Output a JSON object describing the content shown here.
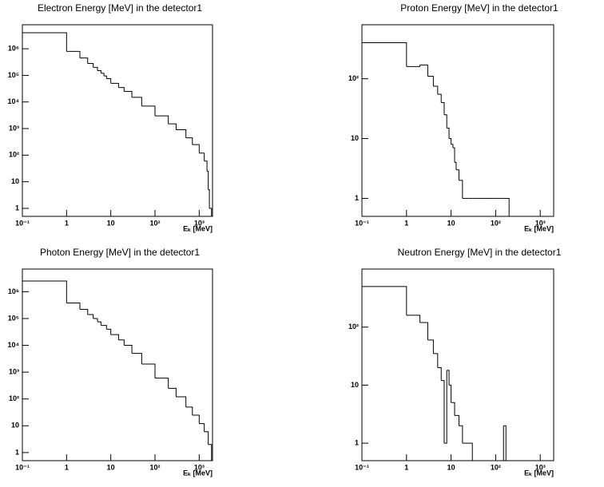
{
  "chart_data": [
    {
      "type": "histogram",
      "title": "Electron Energy [MeV] in the detector1",
      "x_label": "Eₖ [MeV]",
      "log_x": true,
      "log_y": true,
      "color": "#000000",
      "bins": [
        0.1,
        1,
        2,
        3,
        4,
        5,
        6,
        7,
        8,
        10,
        15,
        20,
        30,
        50,
        100,
        200,
        300,
        500,
        700,
        1000,
        1300,
        1500,
        1600,
        1700,
        1900
      ],
      "values": [
        4000000,
        800000,
        450000,
        280000,
        200000,
        150000,
        120000,
        95000,
        75000,
        50000,
        35000,
        25000,
        15000,
        7000,
        3000,
        1500,
        900,
        450,
        250,
        120,
        60,
        25,
        5,
        1
      ],
      "xlim": [
        0.1,
        2000
      ],
      "xticks": [
        {
          "value": 0.1,
          "label": "10⁻¹"
        },
        1,
        10,
        {
          "value": 100,
          "label": "10²"
        },
        {
          "value": 1000,
          "label": "10³"
        }
      ],
      "ylim": [
        0.5,
        8000000
      ],
      "yticks": [
        1,
        10,
        {
          "value": 100,
          "label": "10²"
        },
        {
          "value": 1000,
          "label": "10³"
        },
        {
          "value": 10000,
          "label": "10⁴"
        },
        {
          "value": 100000,
          "label": "10⁵"
        },
        {
          "value": 1000000,
          "label": "10⁶"
        }
      ]
    },
    {
      "type": "histogram",
      "title": "Proton Energy [MeV] in the detector1",
      "x_label": "Eₖ [MeV]",
      "log_x": true,
      "log_y": true,
      "color": "#000000",
      "bins": [
        0.1,
        1,
        2,
        3,
        4,
        5,
        6,
        7,
        8,
        9,
        10,
        11,
        12,
        13,
        15,
        18,
        20,
        25,
        30,
        40,
        60,
        80,
        100,
        150,
        200,
        2000
      ],
      "values": [
        400,
        160,
        170,
        110,
        75,
        55,
        40,
        25,
        15,
        10,
        8,
        7,
        4,
        3,
        2,
        1,
        1,
        1,
        1,
        1,
        1,
        1,
        1,
        1,
        0
      ],
      "xlim": [
        0.1,
        2000
      ],
      "xticks": [
        {
          "value": 0.1,
          "label": "10⁻¹"
        },
        1,
        10,
        {
          "value": 100,
          "label": "10²"
        },
        {
          "value": 1000,
          "label": "10³"
        }
      ],
      "ylim": [
        0.5,
        800
      ],
      "yticks": [
        1,
        10,
        {
          "value": 100,
          "label": "10²"
        }
      ]
    },
    {
      "type": "histogram",
      "title": "Photon Energy [MeV] in the detector1",
      "x_label": "Eₖ [MeV]",
      "log_x": true,
      "log_y": true,
      "color": "#000000",
      "bins": [
        0.1,
        1,
        2,
        3,
        4,
        5,
        6,
        8,
        10,
        15,
        20,
        30,
        50,
        100,
        200,
        300,
        500,
        700,
        1000,
        1300,
        1600,
        1900
      ],
      "values": [
        2500000,
        380000,
        220000,
        140000,
        100000,
        75000,
        55000,
        40000,
        25000,
        16000,
        10000,
        5000,
        2000,
        600,
        250,
        120,
        50,
        25,
        12,
        6,
        2
      ],
      "xlim": [
        0.1,
        2000
      ],
      "xticks": [
        {
          "value": 0.1,
          "label": "10⁻¹"
        },
        1,
        10,
        {
          "value": 100,
          "label": "10²"
        },
        {
          "value": 1000,
          "label": "10³"
        }
      ],
      "ylim": [
        0.5,
        7000000
      ],
      "yticks": [
        1,
        10,
        {
          "value": 100,
          "label": "10²"
        },
        {
          "value": 1000,
          "label": "10³"
        },
        {
          "value": 10000,
          "label": "10⁴"
        },
        {
          "value": 100000,
          "label": "10⁵"
        },
        {
          "value": 1000000,
          "label": "10⁶"
        }
      ]
    },
    {
      "type": "histogram",
      "title": "Neutron Energy [MeV] in the detector1",
      "x_label": "Eₖ [MeV]",
      "log_x": true,
      "log_y": true,
      "color": "#000000",
      "bins": [
        0.1,
        1,
        2,
        3,
        4,
        5,
        6,
        7,
        8,
        9,
        10,
        12,
        15,
        18,
        20,
        30,
        150,
        170,
        2000
      ],
      "values": [
        500,
        160,
        120,
        60,
        35,
        20,
        12,
        1,
        18,
        10,
        5,
        3,
        2,
        1,
        1,
        0,
        2,
        0
      ],
      "xlim": [
        0.1,
        2000
      ],
      "xticks": [
        {
          "value": 0.1,
          "label": "10⁻¹"
        },
        1,
        10,
        {
          "value": 100,
          "label": "10²"
        },
        {
          "value": 1000,
          "label": "10³"
        }
      ],
      "ylim": [
        0.5,
        1000
      ],
      "yticks": [
        1,
        10,
        {
          "value": 100,
          "label": "10²"
        }
      ]
    }
  ]
}
